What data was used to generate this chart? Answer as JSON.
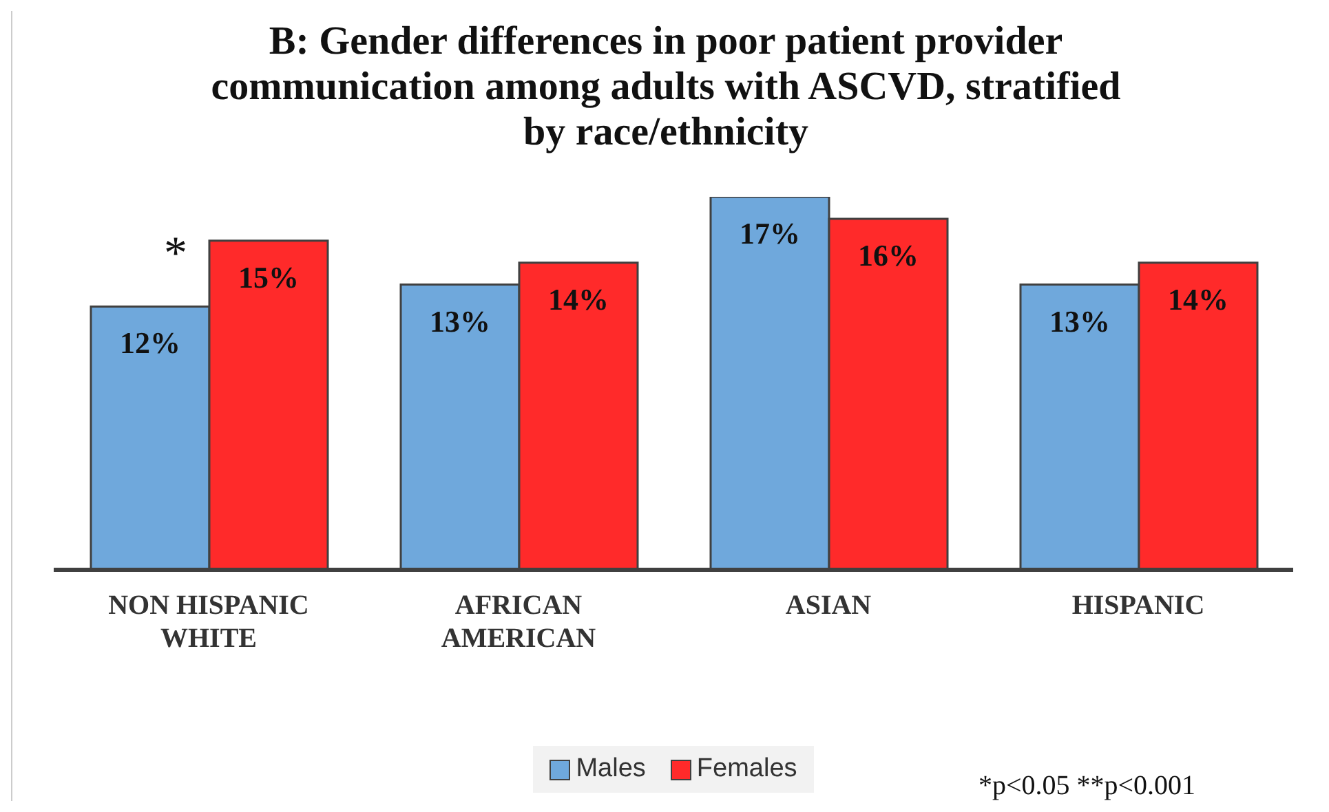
{
  "chart_data": {
    "type": "bar",
    "title": "B: Gender differences in poor patient provider communication among adults with ASCVD, stratified by race/ethnicity",
    "categories": [
      "NON HISPANIC WHITE",
      "AFRICAN AMERICAN",
      "ASIAN",
      "HISPANIC"
    ],
    "series": [
      {
        "name": "Males",
        "color": "#6fa8dc",
        "values": [
          12,
          13,
          17,
          13
        ],
        "value_labels": [
          "12%",
          "13%",
          "17%",
          "13%"
        ]
      },
      {
        "name": "Females",
        "color": "#ff2a2a",
        "values": [
          15,
          14,
          16,
          14
        ],
        "value_labels": [
          "15%",
          "14%",
          "16%",
          "14%"
        ]
      }
    ],
    "legend": "bottom",
    "grid": false,
    "annotations": [
      {
        "text": "*",
        "x": "NON HISPANIC WHITE",
        "y": 14.5
      },
      "*p<0.05 **p<0.001"
    ]
  }
}
